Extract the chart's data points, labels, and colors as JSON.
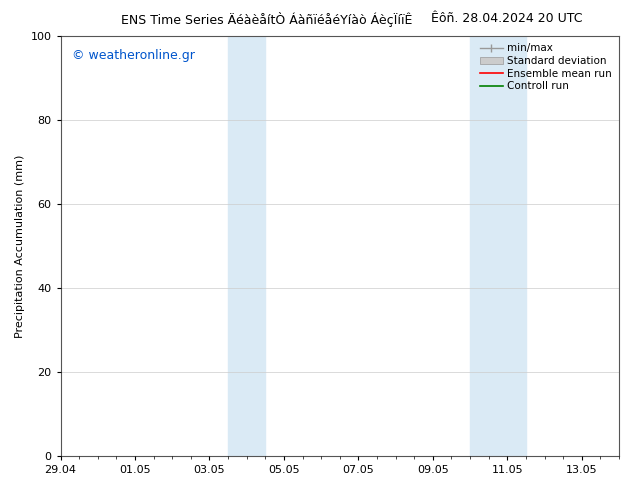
{
  "title_right": "Êôñ. 28.04.2024 20 UTC",
  "ylabel": "Precipitation Accumulation (mm)",
  "ylim": [
    0,
    100
  ],
  "yticks": [
    0,
    20,
    40,
    60,
    80,
    100
  ],
  "xlim_min": 0,
  "xlim_max": 15.0,
  "xtick_positions": [
    0,
    2,
    4,
    6,
    8,
    10,
    12,
    14
  ],
  "xticklabels": [
    "29.04",
    "01.05",
    "03.05",
    "05.05",
    "07.05",
    "09.05",
    "11.05",
    "13.05"
  ],
  "watermark": "© weatheronline.gr",
  "watermark_color": "#0055cc",
  "legend_entries": [
    "min/max",
    "Standard deviation",
    "Ensemble mean run",
    "Controll run"
  ],
  "band_color": "#daeaf5",
  "band1_x1": 4.5,
  "band1_x2": 5.0,
  "band1_x3": 5.0,
  "band1_x4": 5.5,
  "band2_x1": 11.0,
  "band2_x2": 11.5,
  "band2_x3": 11.5,
  "band2_x4": 12.5,
  "background_color": "#ffffff",
  "title_fontsize": 9,
  "ylabel_fontsize": 8,
  "tick_fontsize": 8,
  "legend_fontsize": 7.5,
  "watermark_fontsize": 9
}
